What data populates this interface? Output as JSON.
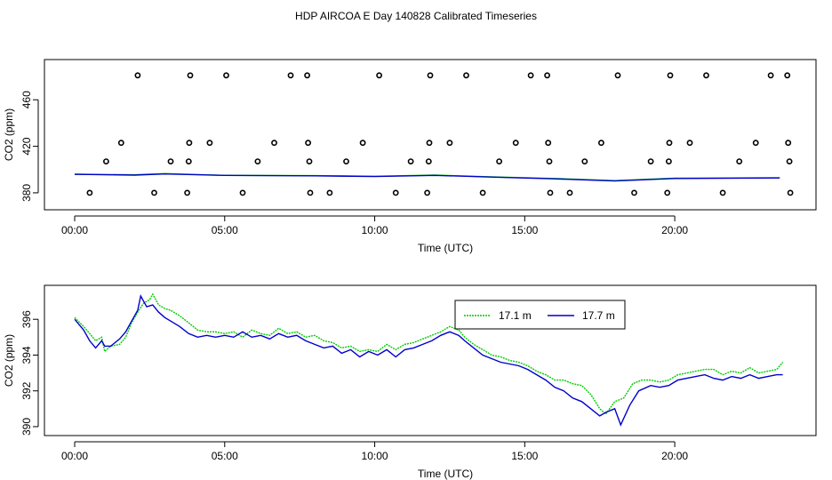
{
  "figure": {
    "title": "HDP AIRCOA E  Day 140828  Calibrated Timeseries"
  },
  "colors": {
    "series_17_1": "#00cc00",
    "series_17_7": "#0000cc",
    "axis": "#000000",
    "points": "#000000"
  },
  "chart_data": [
    {
      "type": "scatter",
      "title": "",
      "xlabel": "Time (UTC)",
      "ylabel": "CO2 (ppm)",
      "x_unit": "hours",
      "xlim": [
        0,
        24
      ],
      "ylim": [
        370,
        490
      ],
      "x_ticks": [
        {
          "value": 0,
          "label": "00:00"
        },
        {
          "value": 5,
          "label": "05:00"
        },
        {
          "value": 10,
          "label": "10:00"
        },
        {
          "value": 15,
          "label": "15:00"
        },
        {
          "value": 20,
          "label": "20:00"
        }
      ],
      "y_ticks": [
        {
          "value": 380,
          "label": "380"
        },
        {
          "value": 420,
          "label": "420"
        },
        {
          "value": 460,
          "label": "460"
        }
      ],
      "grid": false,
      "points": [
        [
          0.5,
          380
        ],
        [
          1.05,
          407
        ],
        [
          1.55,
          423
        ],
        [
          2.1,
          481
        ],
        [
          2.65,
          380
        ],
        [
          3.2,
          407
        ],
        [
          3.75,
          380
        ],
        [
          3.8,
          407
        ],
        [
          3.82,
          423
        ],
        [
          3.85,
          481
        ],
        [
          4.5,
          423
        ],
        [
          5.05,
          481
        ],
        [
          5.6,
          380
        ],
        [
          6.1,
          407
        ],
        [
          6.65,
          423
        ],
        [
          7.2,
          481
        ],
        [
          7.75,
          481
        ],
        [
          7.78,
          423
        ],
        [
          7.82,
          407
        ],
        [
          7.85,
          380
        ],
        [
          8.5,
          380
        ],
        [
          9.05,
          407
        ],
        [
          9.6,
          423
        ],
        [
          10.15,
          481
        ],
        [
          10.7,
          380
        ],
        [
          11.2,
          407
        ],
        [
          11.75,
          380
        ],
        [
          11.8,
          407
        ],
        [
          11.82,
          423
        ],
        [
          11.85,
          481
        ],
        [
          12.5,
          423
        ],
        [
          13.05,
          481
        ],
        [
          13.6,
          380
        ],
        [
          14.15,
          407
        ],
        [
          14.7,
          423
        ],
        [
          15.2,
          481
        ],
        [
          15.75,
          481
        ],
        [
          15.78,
          423
        ],
        [
          15.82,
          407
        ],
        [
          15.85,
          380
        ],
        [
          16.5,
          380
        ],
        [
          17.0,
          407
        ],
        [
          17.55,
          423
        ],
        [
          18.1,
          481
        ],
        [
          18.65,
          380
        ],
        [
          19.2,
          407
        ],
        [
          19.75,
          380
        ],
        [
          19.8,
          407
        ],
        [
          19.82,
          423
        ],
        [
          19.85,
          481
        ],
        [
          20.5,
          423
        ],
        [
          21.05,
          481
        ],
        [
          21.6,
          380
        ],
        [
          22.15,
          407
        ],
        [
          22.7,
          423
        ],
        [
          23.2,
          481
        ],
        [
          23.75,
          481
        ],
        [
          23.78,
          423
        ],
        [
          23.82,
          407
        ],
        [
          23.85,
          380
        ]
      ],
      "series": [
        {
          "values": [
            [
              0,
              395.8
            ],
            [
              2,
              395.5
            ],
            [
              3,
              396.5
            ],
            [
              5,
              395.0
            ],
            [
              8,
              394.8
            ],
            [
              10,
              394.2
            ],
            [
              12,
              395.3
            ],
            [
              14,
              393.6
            ],
            [
              16,
              392.3
            ],
            [
              18,
              390.5
            ],
            [
              20,
              392.6
            ],
            [
              23.5,
              393.0
            ]
          ]
        },
        {
          "values": [
            [
              0,
              396.0
            ],
            [
              2,
              395.2
            ],
            [
              3,
              396.2
            ],
            [
              5,
              395.0
            ],
            [
              8,
              394.6
            ],
            [
              10,
              394.0
            ],
            [
              12,
              395.0
            ],
            [
              14,
              393.5
            ],
            [
              16,
              392.0
            ],
            [
              18,
              390.2
            ],
            [
              20,
              392.3
            ],
            [
              23.5,
              392.8
            ]
          ]
        }
      ]
    },
    {
      "type": "line",
      "title": "",
      "xlabel": "Time (UTC)",
      "ylabel": "CO2 (ppm)",
      "x_unit": "hours",
      "xlim": [
        0,
        24
      ],
      "ylim": [
        389.8,
        397.6
      ],
      "x_ticks": [
        {
          "value": 0,
          "label": "00:00"
        },
        {
          "value": 5,
          "label": "05:00"
        },
        {
          "value": 10,
          "label": "10:00"
        },
        {
          "value": 15,
          "label": "15:00"
        },
        {
          "value": 20,
          "label": "20:00"
        }
      ],
      "y_ticks": [
        {
          "value": 390,
          "label": "390"
        },
        {
          "value": 392,
          "label": "392"
        },
        {
          "value": 394,
          "label": "394"
        },
        {
          "value": 396,
          "label": "396"
        }
      ],
      "grid": false,
      "legend": {
        "placement": "top-right"
      },
      "series": [
        {
          "name": "17.1 m",
          "color": "#00cc00",
          "values": [
            [
              0.0,
              396.1
            ],
            [
              0.3,
              395.6
            ],
            [
              0.5,
              395.2
            ],
            [
              0.7,
              394.8
            ],
            [
              0.9,
              395.0
            ],
            [
              1.0,
              394.2
            ],
            [
              1.2,
              394.5
            ],
            [
              1.5,
              394.6
            ],
            [
              1.7,
              395.0
            ],
            [
              1.9,
              395.8
            ],
            [
              2.1,
              396.4
            ],
            [
              2.3,
              396.9
            ],
            [
              2.5,
              397.1
            ],
            [
              2.6,
              397.4
            ],
            [
              2.8,
              396.8
            ],
            [
              3.0,
              396.6
            ],
            [
              3.2,
              396.5
            ],
            [
              3.5,
              396.2
            ],
            [
              3.8,
              395.8
            ],
            [
              4.1,
              395.4
            ],
            [
              4.4,
              395.3
            ],
            [
              4.7,
              395.3
            ],
            [
              5.0,
              395.2
            ],
            [
              5.3,
              395.3
            ],
            [
              5.6,
              395.0
            ],
            [
              5.9,
              395.4
            ],
            [
              6.2,
              395.2
            ],
            [
              6.5,
              395.1
            ],
            [
              6.8,
              395.5
            ],
            [
              7.1,
              395.2
            ],
            [
              7.4,
              395.3
            ],
            [
              7.7,
              395.0
            ],
            [
              8.0,
              395.1
            ],
            [
              8.3,
              394.8
            ],
            [
              8.6,
              394.7
            ],
            [
              8.9,
              394.4
            ],
            [
              9.2,
              394.5
            ],
            [
              9.5,
              394.2
            ],
            [
              9.8,
              394.3
            ],
            [
              10.1,
              394.2
            ],
            [
              10.4,
              394.6
            ],
            [
              10.7,
              394.3
            ],
            [
              11.0,
              394.6
            ],
            [
              11.3,
              394.7
            ],
            [
              11.6,
              394.9
            ],
            [
              11.9,
              395.1
            ],
            [
              12.2,
              395.3
            ],
            [
              12.5,
              395.6
            ],
            [
              12.8,
              395.4
            ],
            [
              13.0,
              395.0
            ],
            [
              13.3,
              394.6
            ],
            [
              13.6,
              394.3
            ],
            [
              13.9,
              394.0
            ],
            [
              14.2,
              393.9
            ],
            [
              14.5,
              393.7
            ],
            [
              14.8,
              393.6
            ],
            [
              15.1,
              393.4
            ],
            [
              15.4,
              393.1
            ],
            [
              15.7,
              392.9
            ],
            [
              16.0,
              392.6
            ],
            [
              16.3,
              392.6
            ],
            [
              16.6,
              392.4
            ],
            [
              16.9,
              392.3
            ],
            [
              17.2,
              391.8
            ],
            [
              17.5,
              391.0
            ],
            [
              17.7,
              390.7
            ],
            [
              18.0,
              391.4
            ],
            [
              18.3,
              391.6
            ],
            [
              18.6,
              392.4
            ],
            [
              18.9,
              392.6
            ],
            [
              19.2,
              392.6
            ],
            [
              19.5,
              392.5
            ],
            [
              19.8,
              392.6
            ],
            [
              20.1,
              392.9
            ],
            [
              20.4,
              393.0
            ],
            [
              20.7,
              393.1
            ],
            [
              21.0,
              393.2
            ],
            [
              21.3,
              393.2
            ],
            [
              21.6,
              392.9
            ],
            [
              21.9,
              393.1
            ],
            [
              22.2,
              393.0
            ],
            [
              22.5,
              393.3
            ],
            [
              22.8,
              393.0
            ],
            [
              23.1,
              393.1
            ],
            [
              23.4,
              393.2
            ],
            [
              23.6,
              393.6
            ]
          ]
        },
        {
          "name": "17.7 m",
          "color": "#0000cc",
          "values": [
            [
              0.0,
              396.0
            ],
            [
              0.3,
              395.4
            ],
            [
              0.5,
              394.8
            ],
            [
              0.7,
              394.4
            ],
            [
              0.9,
              394.8
            ],
            [
              1.0,
              394.5
            ],
            [
              1.2,
              394.5
            ],
            [
              1.5,
              394.9
            ],
            [
              1.7,
              395.3
            ],
            [
              1.9,
              395.9
            ],
            [
              2.1,
              396.5
            ],
            [
              2.2,
              397.3
            ],
            [
              2.4,
              396.7
            ],
            [
              2.6,
              396.8
            ],
            [
              2.8,
              396.4
            ],
            [
              3.0,
              396.1
            ],
            [
              3.2,
              395.9
            ],
            [
              3.5,
              395.6
            ],
            [
              3.8,
              395.2
            ],
            [
              4.1,
              395.0
            ],
            [
              4.4,
              395.1
            ],
            [
              4.7,
              395.0
            ],
            [
              5.0,
              395.1
            ],
            [
              5.3,
              395.0
            ],
            [
              5.6,
              395.3
            ],
            [
              5.9,
              395.0
            ],
            [
              6.2,
              395.1
            ],
            [
              6.5,
              394.9
            ],
            [
              6.8,
              395.2
            ],
            [
              7.1,
              395.0
            ],
            [
              7.4,
              395.1
            ],
            [
              7.7,
              394.8
            ],
            [
              8.0,
              394.6
            ],
            [
              8.3,
              394.4
            ],
            [
              8.6,
              394.5
            ],
            [
              8.9,
              394.1
            ],
            [
              9.2,
              394.3
            ],
            [
              9.5,
              393.9
            ],
            [
              9.8,
              394.2
            ],
            [
              10.1,
              394.0
            ],
            [
              10.4,
              394.3
            ],
            [
              10.7,
              393.9
            ],
            [
              11.0,
              394.3
            ],
            [
              11.3,
              394.4
            ],
            [
              11.6,
              394.6
            ],
            [
              11.9,
              394.8
            ],
            [
              12.2,
              395.1
            ],
            [
              12.5,
              395.3
            ],
            [
              12.8,
              395.1
            ],
            [
              13.0,
              394.8
            ],
            [
              13.3,
              394.4
            ],
            [
              13.6,
              394.0
            ],
            [
              13.9,
              393.8
            ],
            [
              14.2,
              393.6
            ],
            [
              14.5,
              393.5
            ],
            [
              14.8,
              393.4
            ],
            [
              15.1,
              393.2
            ],
            [
              15.4,
              392.9
            ],
            [
              15.7,
              392.6
            ],
            [
              16.0,
              392.2
            ],
            [
              16.3,
              392.0
            ],
            [
              16.6,
              391.6
            ],
            [
              16.9,
              391.4
            ],
            [
              17.2,
              391.0
            ],
            [
              17.5,
              390.6
            ],
            [
              17.7,
              390.8
            ],
            [
              18.0,
              391.0
            ],
            [
              18.2,
              390.1
            ],
            [
              18.5,
              391.2
            ],
            [
              18.8,
              392.0
            ],
            [
              19.2,
              392.3
            ],
            [
              19.5,
              392.2
            ],
            [
              19.8,
              392.3
            ],
            [
              20.1,
              392.6
            ],
            [
              20.4,
              392.7
            ],
            [
              20.7,
              392.8
            ],
            [
              21.0,
              392.9
            ],
            [
              21.3,
              392.7
            ],
            [
              21.6,
              392.6
            ],
            [
              21.9,
              392.8
            ],
            [
              22.2,
              392.7
            ],
            [
              22.5,
              392.9
            ],
            [
              22.8,
              392.7
            ],
            [
              23.1,
              392.8
            ],
            [
              23.4,
              392.9
            ],
            [
              23.6,
              392.9
            ]
          ]
        }
      ]
    }
  ]
}
